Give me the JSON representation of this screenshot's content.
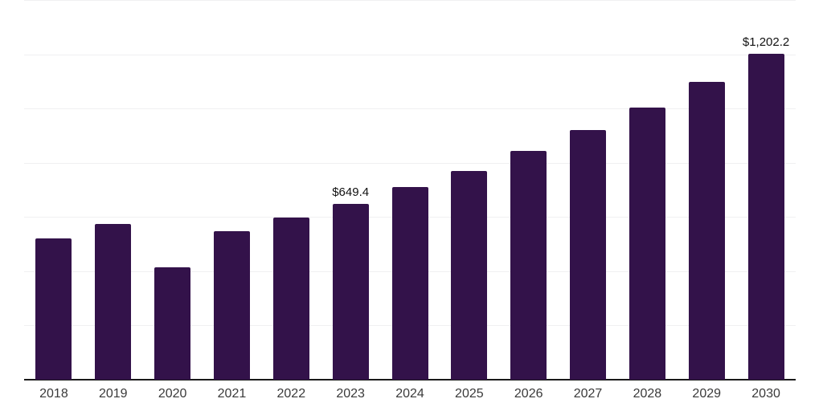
{
  "chart_data": {
    "type": "bar",
    "title": "",
    "xlabel": "",
    "ylabel": "",
    "categories": [
      "2018",
      "2019",
      "2020",
      "2021",
      "2022",
      "2023",
      "2024",
      "2025",
      "2026",
      "2027",
      "2028",
      "2029",
      "2030"
    ],
    "values": [
      520,
      573,
      414,
      547,
      597,
      649.4,
      709,
      771,
      845,
      922,
      1004,
      1099,
      1202.2
    ],
    "data_labels": [
      null,
      null,
      null,
      null,
      null,
      "$649.4",
      null,
      null,
      null,
      null,
      null,
      null,
      "$1,202.2"
    ],
    "ylim": [
      0,
      1400
    ],
    "grid_step": 200,
    "grid": "horizontal-only",
    "y_tick_labels_visible": false,
    "legend": "none",
    "colors": {
      "bar_fill": "#33124a",
      "gridline": "#f0f0f1",
      "axis_line": "#1a1a1a",
      "x_tick_label": "#3a3a3a",
      "data_label": "#111111",
      "background": "#ffffff"
    }
  }
}
